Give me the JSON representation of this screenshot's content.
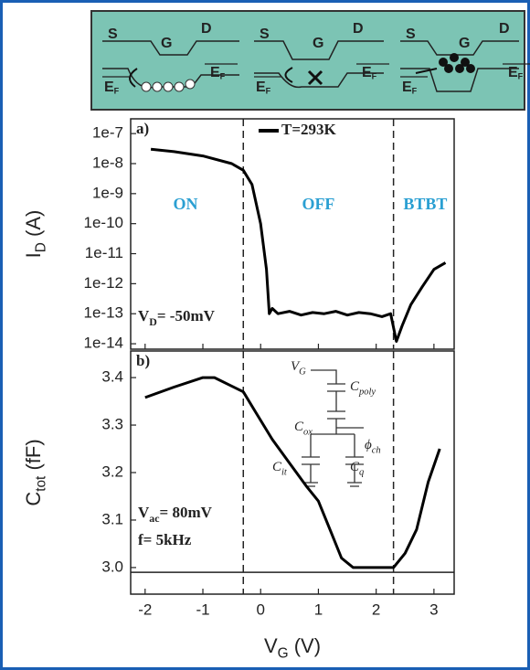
{
  "chart_data": [
    {
      "type": "line",
      "label": "a)",
      "log_y": true,
      "y_label": {
        "main": "I",
        "sub": "D",
        "rest": " (A)"
      },
      "xlim": [
        -2.25,
        3.35
      ],
      "xticks": [
        -2,
        -1,
        0,
        1,
        2,
        3
      ],
      "ylim": [
        6.6e-15,
        3.1e-07
      ],
      "yticks": [
        1e-07,
        1e-08,
        1e-09,
        1e-10,
        1e-11,
        1e-12,
        1e-13,
        1e-14
      ],
      "x": [
        -1.9,
        -1.5,
        -1,
        -0.5,
        -0.3,
        -0.15,
        0,
        0.1,
        0.15,
        0.2,
        0.3,
        0.5,
        0.7,
        0.9,
        1.1,
        1.3,
        1.5,
        1.7,
        1.9,
        2.1,
        2.25,
        2.35,
        2.45,
        2.6,
        2.8,
        3.0,
        3.2
      ],
      "series": [
        {
          "name": "T=293K",
          "color": "#000000",
          "values": [
            3e-08,
            2.5e-08,
            1.8e-08,
            1e-08,
            6e-09,
            2e-09,
            1e-10,
            3e-12,
            1e-13,
            1.5e-13,
            1e-13,
            1.2e-13,
            9e-14,
            1.1e-13,
            1e-13,
            1.2e-13,
            9e-14,
            1.1e-13,
            1e-13,
            8e-14,
            1e-13,
            1.2e-14,
            4e-14,
            2e-13,
            8e-13,
            3e-12,
            5e-12
          ]
        }
      ],
      "legend": "top",
      "vlines": [
        -0.3,
        2.3
      ],
      "regions": [
        {
          "text": "ON",
          "x": -1.3
        },
        {
          "text": "OFF",
          "x": 1.0
        },
        {
          "text": "BTBT",
          "x": 2.85
        }
      ],
      "note": {
        "main": "V",
        "sub": "D",
        "rest": "= -50mV"
      }
    },
    {
      "type": "line",
      "label": "b)",
      "y_label": {
        "main": "C",
        "sub": "tot",
        "rest": " (fF)"
      },
      "x_label": {
        "main": "V",
        "sub": "G",
        "rest": " (V)"
      },
      "xlim": [
        -2.25,
        3.35
      ],
      "xticks": [
        -2,
        -1,
        0,
        1,
        2,
        3
      ],
      "ylim": [
        2.944,
        3.456
      ],
      "yticks": [
        {
          "value": 3,
          "label": "3.0"
        },
        3.1,
        3.2,
        3.3,
        3.4
      ],
      "x": [
        -2,
        -1.5,
        -1,
        -0.8,
        -0.3,
        -0.1,
        0.2,
        0.5,
        0.8,
        1.0,
        1.2,
        1.4,
        1.6,
        2.0,
        2.3,
        2.5,
        2.7,
        2.9,
        3.1
      ],
      "series": [
        {
          "color": "#000000",
          "values": [
            3.358,
            3.38,
            3.4,
            3.4,
            3.37,
            3.33,
            3.27,
            3.22,
            3.17,
            3.14,
            3.08,
            3.02,
            3.0,
            3.0,
            3.0,
            3.03,
            3.08,
            3.18,
            3.25
          ]
        }
      ],
      "hline": 2.99,
      "vlines": [
        -0.3,
        2.3
      ],
      "notes": [
        {
          "main": "V",
          "sub": "ac",
          "rest": "= 80mV"
        },
        {
          "text": "f= 5kHz"
        }
      ],
      "circuit": [
        {
          "main": "V",
          "sub": "G"
        },
        {
          "main": "C",
          "sub": "poly"
        },
        {
          "main": "C",
          "sub": "ox"
        },
        {
          "main": "ϕ",
          "sub": "ch"
        },
        {
          "main": "C",
          "sub": "it"
        },
        {
          "main": "C",
          "sub": "q"
        }
      ]
    }
  ],
  "inset": {
    "panels": [
      {
        "source": "S",
        "gate": "G",
        "drain": "D",
        "left_level": {
          "main": "E",
          "sub": "F"
        },
        "right_level": {
          "main": "E",
          "sub": "F"
        }
      },
      {
        "source": "S",
        "gate": "G",
        "drain": "D",
        "left_level": {
          "main": "E",
          "sub": "F"
        },
        "right_level": {
          "main": "E",
          "sub": "F"
        }
      },
      {
        "source": "S",
        "gate": "G",
        "drain": "D",
        "left_level": {
          "main": "E",
          "sub": "F"
        },
        "right_level": {
          "main": "E",
          "sub": "F"
        }
      }
    ]
  }
}
